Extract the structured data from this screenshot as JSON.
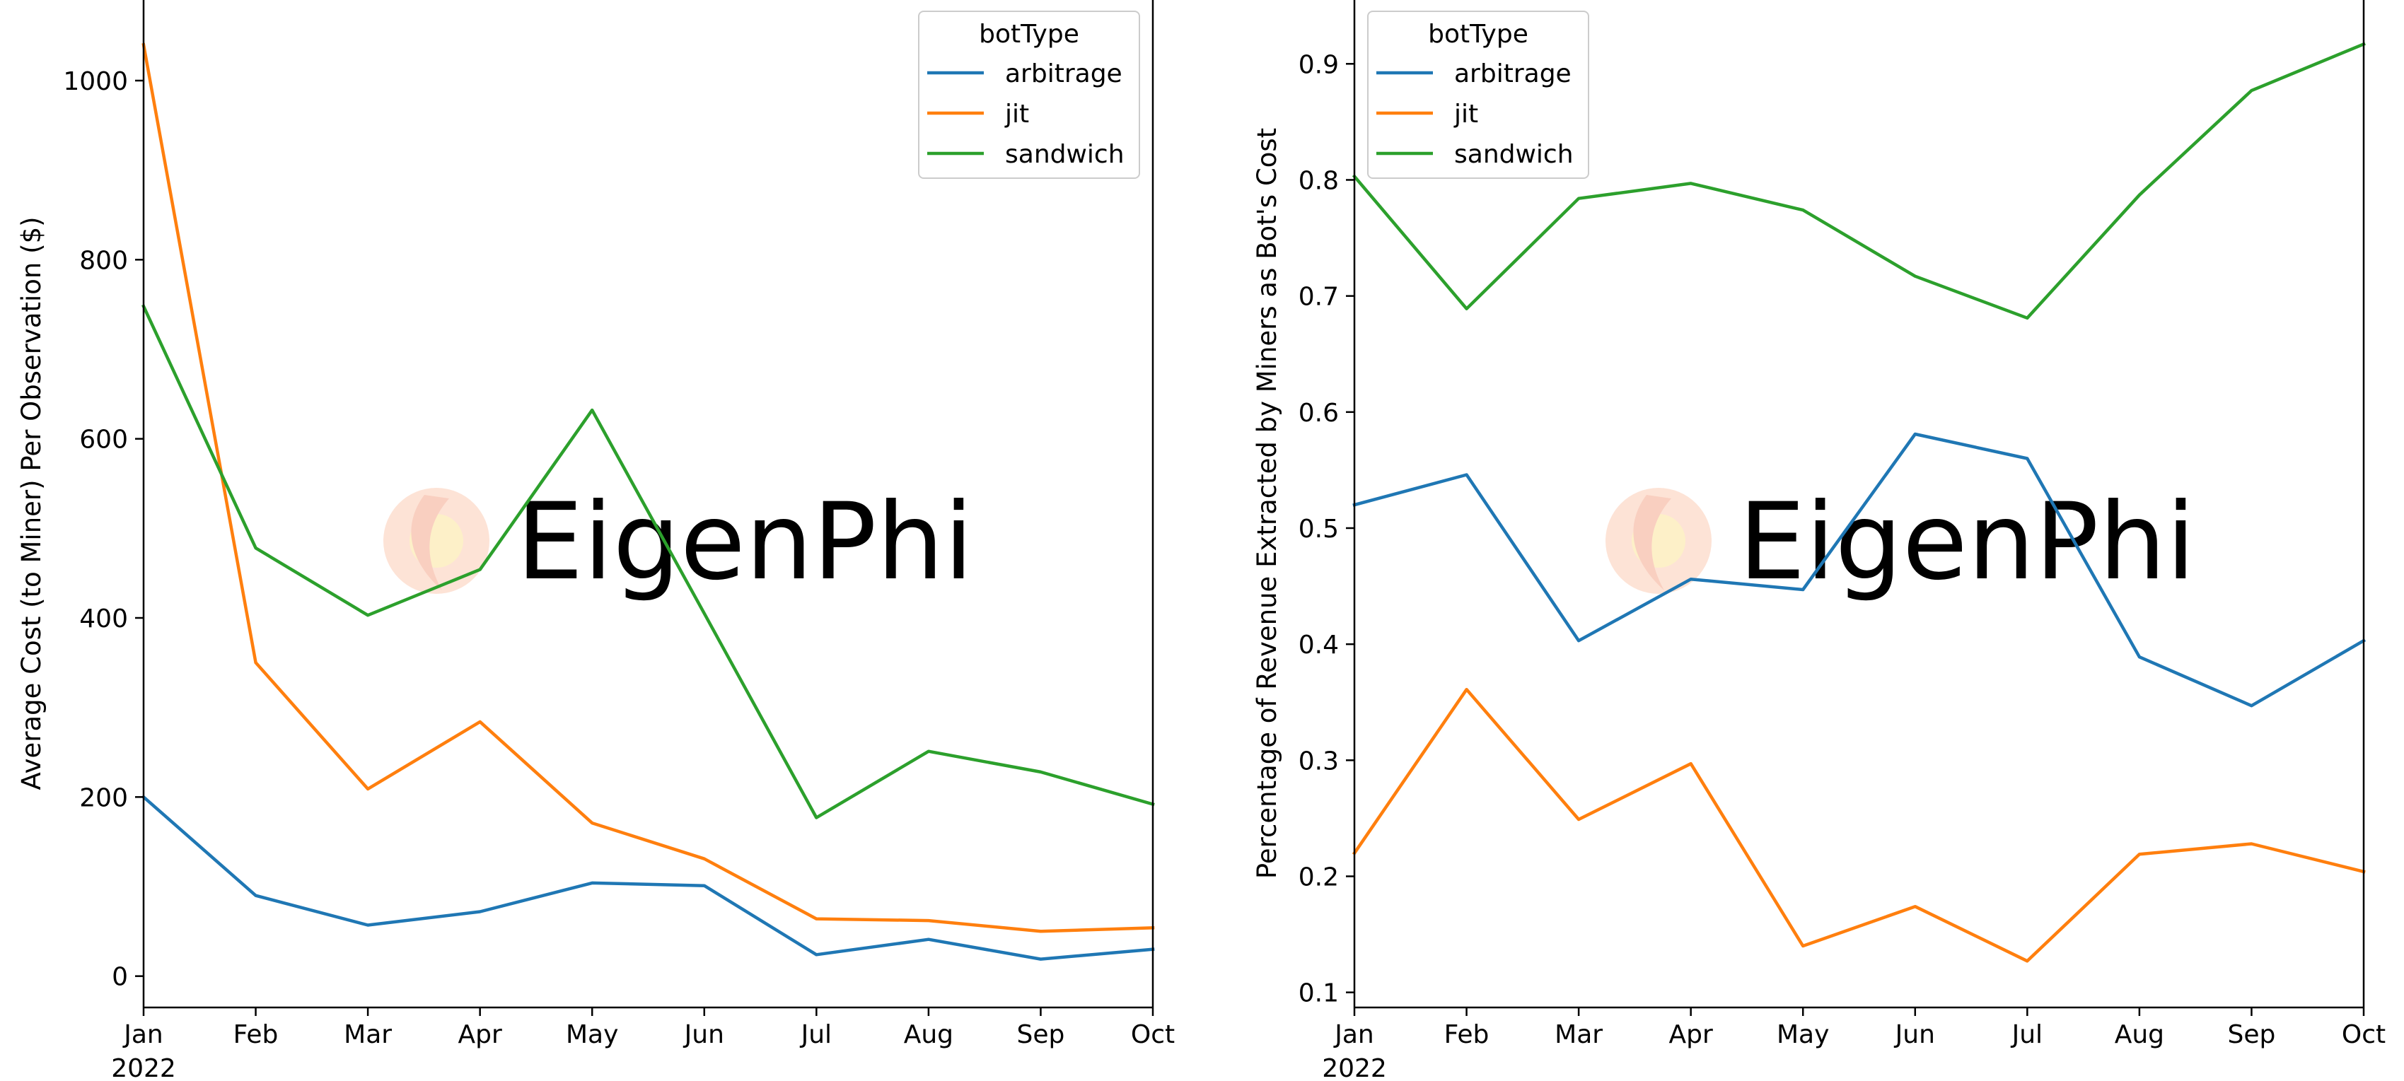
{
  "colors": {
    "arbitrage": "#1f77b4",
    "jit": "#ff7f0e",
    "sandwich": "#2ca02c",
    "watermark_text": "#e2e2e2",
    "watermark_logo": "#fde3d6"
  },
  "watermark": {
    "text": "EigenPhi"
  },
  "chart_data": [
    {
      "type": "line",
      "x": [
        "Jan",
        "Feb",
        "Mar",
        "Apr",
        "May",
        "Jun",
        "Jul",
        "Aug",
        "Sep",
        "Oct"
      ],
      "x_year_label": "2022",
      "ylabel": "Average Cost (to Miner) Per Observation ($)",
      "xlabel": "",
      "ylim": [
        -35,
        1090
      ],
      "yticks": [
        0,
        200,
        400,
        600,
        800,
        1000
      ],
      "grid": false,
      "legend": {
        "title": "botType",
        "position": "upper right"
      },
      "series": [
        {
          "name": "arbitrage",
          "color": "#1f77b4",
          "values": [
            200,
            90,
            57,
            72,
            104,
            101,
            24,
            41,
            19,
            30
          ]
        },
        {
          "name": "jit",
          "color": "#ff7f0e",
          "values": [
            1040,
            350,
            209,
            284,
            171,
            131,
            64,
            62,
            50,
            54
          ]
        },
        {
          "name": "sandwich",
          "color": "#2ca02c",
          "values": [
            748,
            478,
            403,
            454,
            632,
            405,
            177,
            251,
            228,
            192
          ]
        }
      ]
    },
    {
      "type": "line",
      "x": [
        "Jan",
        "Feb",
        "Mar",
        "Apr",
        "May",
        "Jun",
        "Jul",
        "Aug",
        "Sep",
        "Oct"
      ],
      "x_year_label": "2022",
      "ylabel": "Percentage of Revenue Extracted by Miners as Bot's Cost",
      "xlabel": "",
      "ylim": [
        0.087,
        0.955
      ],
      "yticks": [
        0.1,
        0.2,
        0.3,
        0.4,
        0.5,
        0.6,
        0.7,
        0.8,
        0.9
      ],
      "grid": false,
      "legend": {
        "title": "botType",
        "position": "upper left"
      },
      "series": [
        {
          "name": "arbitrage",
          "color": "#1f77b4",
          "values": [
            0.52,
            0.546,
            0.403,
            0.456,
            0.447,
            0.581,
            0.56,
            0.389,
            0.347,
            0.403
          ]
        },
        {
          "name": "jit",
          "color": "#ff7f0e",
          "values": [
            0.22,
            0.361,
            0.249,
            0.297,
            0.14,
            0.174,
            0.127,
            0.219,
            0.228,
            0.204
          ]
        },
        {
          "name": "sandwich",
          "color": "#2ca02c",
          "values": [
            0.803,
            0.689,
            0.784,
            0.797,
            0.774,
            0.717,
            0.681,
            0.787,
            0.877,
            0.917
          ]
        }
      ]
    }
  ]
}
